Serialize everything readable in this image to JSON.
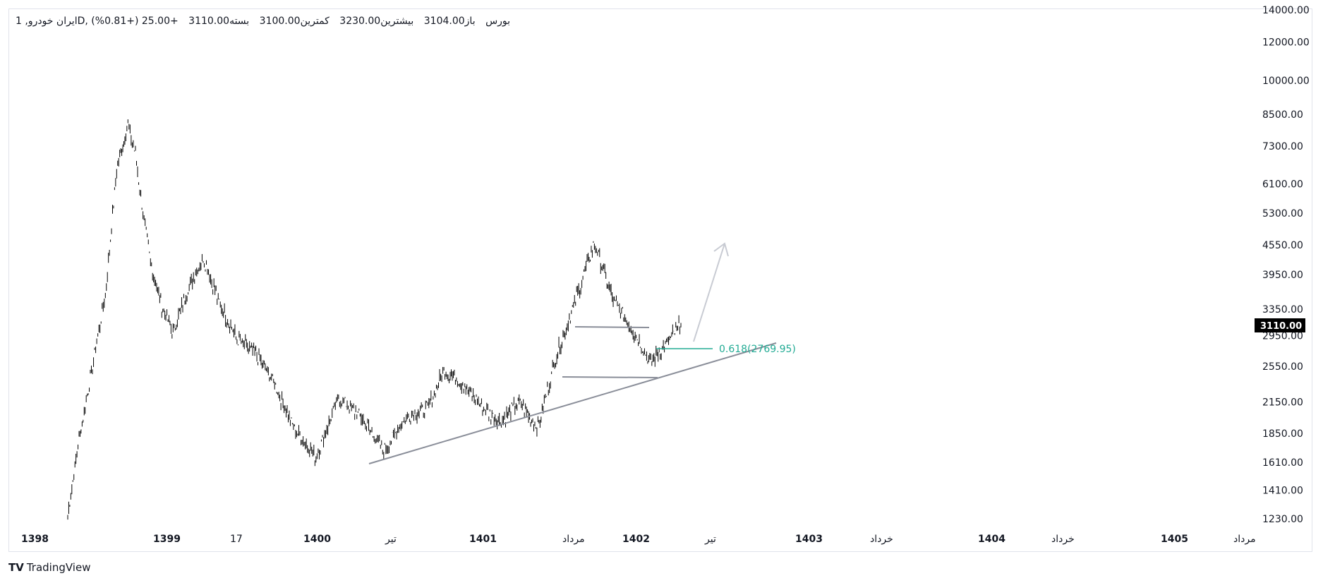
{
  "legend": {
    "symbol": "ایران خودرو, 1D, بورس",
    "open_label": "باز",
    "open": "3104.00",
    "high_label": "بیشترین",
    "high": "3230.00",
    "low_label": "کمترین",
    "low": "3100.00",
    "close_label": "بسته",
    "close": "3110.00",
    "change": "+25.00 (+0.81%)"
  },
  "price_tag": "3110.00",
  "fib_label": "0.618(2769.95)",
  "branding": "TradingView",
  "colors": {
    "candles": "#000000",
    "trendline": "#8a8e99",
    "rectangle": "#8a8e99",
    "arrow": "#c8cbd3",
    "fib": "#22ab94",
    "price_tag_bg": "#000000"
  },
  "chart_data": {
    "type": "line",
    "scale": "log",
    "y_axis_ticks": [
      "14000.00",
      "12000.00",
      "10000.00",
      "8500.00",
      "7300.00",
      "6100.00",
      "5300.00",
      "4550.00",
      "3950.00",
      "3350.00",
      "2950.00",
      "2550.00",
      "2150.00",
      "1850.00",
      "1610.00",
      "1410.00",
      "1230.00"
    ],
    "x_axis_ticks": [
      "1398",
      "1399",
      "17",
      "1400",
      "تیر",
      "1401",
      "مرداد",
      "1402",
      "تیر",
      "1403",
      "خرداد",
      "1404",
      "خرداد",
      "1405",
      "مرداد"
    ],
    "x_axis_bold": [
      true,
      true,
      false,
      true,
      false,
      true,
      false,
      true,
      false,
      true,
      false,
      true,
      false,
      true,
      false
    ],
    "series": [
      {
        "x": [
          0,
          0.3,
          0.6,
          1.0,
          1.3,
          1.6,
          1.8,
          2.0,
          2.2,
          2.5,
          2.8,
          3.2,
          3.6,
          4.0,
          4.5,
          5.0,
          5.5,
          6.0,
          6.6,
          7.2,
          7.8,
          8.4,
          9.0,
          9.6,
          10.0,
          10.5,
          11.0,
          11.5,
          12.0,
          12.5,
          13.0,
          13.5,
          14.0,
          14.5,
          15.0,
          15.5,
          16.0,
          16.3
        ],
        "values": [
          1250,
          1800,
          2400,
          3600,
          6500,
          8100,
          7000,
          5300,
          4200,
          3400,
          3000,
          3700,
          4300,
          3500,
          2900,
          2700,
          2350,
          1900,
          1650,
          2200,
          2000,
          1700,
          2000,
          2100,
          2500,
          2350,
          2100,
          1950,
          2150,
          1900,
          2700,
          3500,
          4600,
          3500,
          3050,
          2600,
          2900,
          3110
        ]
      }
    ]
  }
}
